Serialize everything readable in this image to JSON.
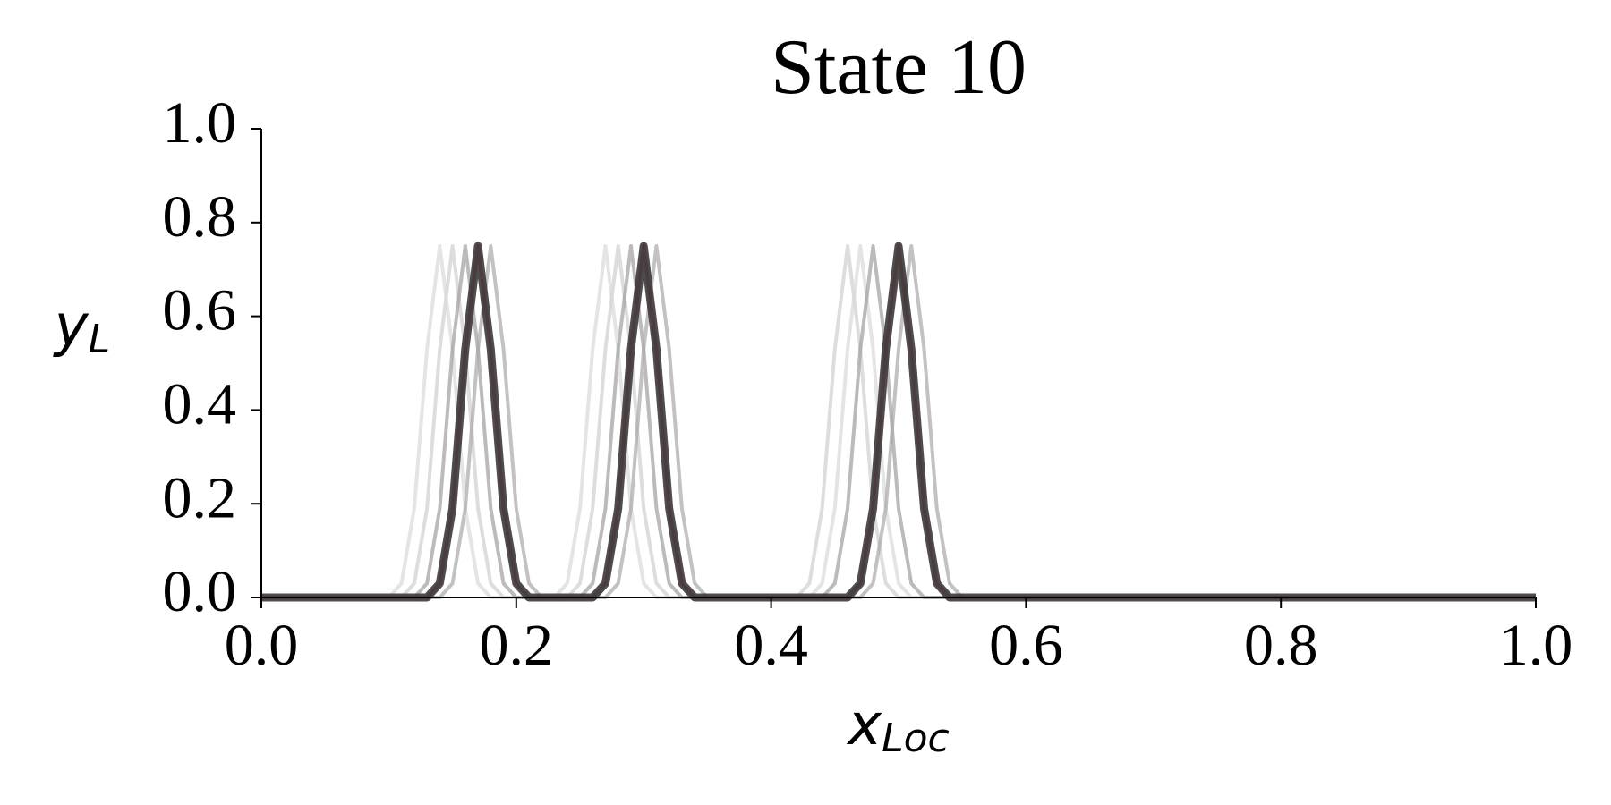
{
  "chart_data": {
    "type": "line",
    "title": "State 10",
    "xlabel": "x",
    "xlabel_sub": "Loc",
    "ylabel": "y",
    "ylabel_sub": "L",
    "x": [
      0,
      0.1,
      0.11,
      0.12,
      0.13,
      0.14,
      0.15,
      0.16,
      0.17,
      0.18,
      0.19,
      0.2,
      0.21,
      0.22,
      0.23,
      0.24,
      0.25,
      0.26,
      0.27,
      0.28,
      0.29,
      0.3,
      0.31,
      0.32,
      0.33,
      0.34,
      0.35,
      0.36,
      0.37,
      0.38,
      0.39,
      0.4,
      0.41,
      0.42,
      0.43,
      0.44,
      0.45,
      0.46,
      0.47,
      0.48,
      0.49,
      0.5,
      0.51,
      0.52,
      0.53,
      0.54,
      0.55,
      0.56,
      1.0
    ],
    "series": [
      {
        "color": "#cfcfcf",
        "values": [
          0,
          0,
          0,
          0.03,
          0.19,
          0.53,
          0.75,
          0.53,
          0.19,
          0.03,
          0,
          0,
          0,
          0,
          0,
          0,
          0.03,
          0.19,
          0.53,
          0.75,
          0.53,
          0.19,
          0.03,
          0,
          0,
          0,
          0,
          0,
          0,
          0,
          0,
          0,
          0,
          0,
          0.03,
          0.19,
          0.53,
          0.75,
          0.53,
          0.19,
          0.03,
          0,
          0,
          0,
          0,
          0,
          0,
          0,
          0
        ]
      },
      {
        "color": "#d9d9d9",
        "values": [
          0,
          0,
          0.03,
          0.19,
          0.53,
          0.75,
          0.53,
          0.19,
          0.03,
          0,
          0,
          0,
          0,
          0,
          0,
          0.03,
          0.19,
          0.53,
          0.75,
          0.53,
          0.19,
          0.03,
          0,
          0,
          0,
          0,
          0,
          0,
          0,
          0,
          0,
          0,
          0,
          0,
          0,
          0.03,
          0.19,
          0.53,
          0.75,
          0.53,
          0.19,
          0.03,
          0,
          0,
          0,
          0,
          0,
          0,
          0
        ]
      },
      {
        "color": "#9e9e9e",
        "values": [
          0,
          0,
          0,
          0,
          0.03,
          0.19,
          0.53,
          0.75,
          0.53,
          0.19,
          0.03,
          0,
          0,
          0,
          0,
          0,
          0,
          0.03,
          0.19,
          0.53,
          0.75,
          0.53,
          0.19,
          0.03,
          0,
          0,
          0,
          0,
          0,
          0,
          0,
          0,
          0,
          0,
          0,
          0,
          0.03,
          0.19,
          0.53,
          0.75,
          0.53,
          0.19,
          0.03,
          0,
          0,
          0,
          0,
          0,
          0
        ]
      },
      {
        "color": "#a8a8a8",
        "values": [
          0,
          0,
          0,
          0,
          0,
          0,
          0.03,
          0.19,
          0.53,
          0.75,
          0.53,
          0.19,
          0.03,
          0,
          0,
          0,
          0,
          0,
          0,
          0.03,
          0.19,
          0.53,
          0.75,
          0.53,
          0.19,
          0.03,
          0,
          0,
          0,
          0,
          0,
          0,
          0,
          0,
          0,
          0,
          0,
          0,
          0,
          0.03,
          0.19,
          0.53,
          0.75,
          0.53,
          0.19,
          0.03,
          0,
          0,
          0
        ]
      },
      {
        "color": "#d62728",
        "values": [
          0,
          0,
          0,
          0,
          0,
          0.03,
          0.19,
          0.53,
          0.75,
          0.53,
          0.19,
          0.03,
          0,
          0,
          0,
          0,
          0,
          0,
          0.03,
          0.19,
          0.53,
          0.75,
          0.53,
          0.19,
          0.03,
          0,
          0,
          0,
          0,
          0,
          0,
          0,
          0,
          0,
          0,
          0,
          0,
          0,
          0.03,
          0.19,
          0.53,
          0.75,
          0.53,
          0.19,
          0.03,
          0,
          0,
          0,
          0
        ]
      },
      {
        "color": "#3b3838",
        "values": [
          0,
          0,
          0,
          0,
          0,
          0.03,
          0.19,
          0.53,
          0.75,
          0.53,
          0.19,
          0.03,
          0,
          0,
          0,
          0,
          0,
          0,
          0.03,
          0.19,
          0.53,
          0.75,
          0.53,
          0.19,
          0.03,
          0,
          0,
          0,
          0,
          0,
          0,
          0,
          0,
          0,
          0,
          0,
          0,
          0,
          0.03,
          0.19,
          0.53,
          0.75,
          0.53,
          0.19,
          0.03,
          0,
          0,
          0,
          0
        ]
      }
    ],
    "xlim": [
      0,
      1
    ],
    "ylim": [
      0,
      1
    ],
    "xticks": [
      {
        "value": 0,
        "label": "0.0"
      },
      0.2,
      0.4,
      0.6,
      0.8,
      {
        "value": 1,
        "label": "1.0"
      }
    ],
    "yticks": [
      {
        "value": 0,
        "label": "0.0"
      },
      0.2,
      0.4,
      0.6,
      0.8,
      {
        "value": 1,
        "label": "1.0"
      }
    ],
    "grid": false
  }
}
